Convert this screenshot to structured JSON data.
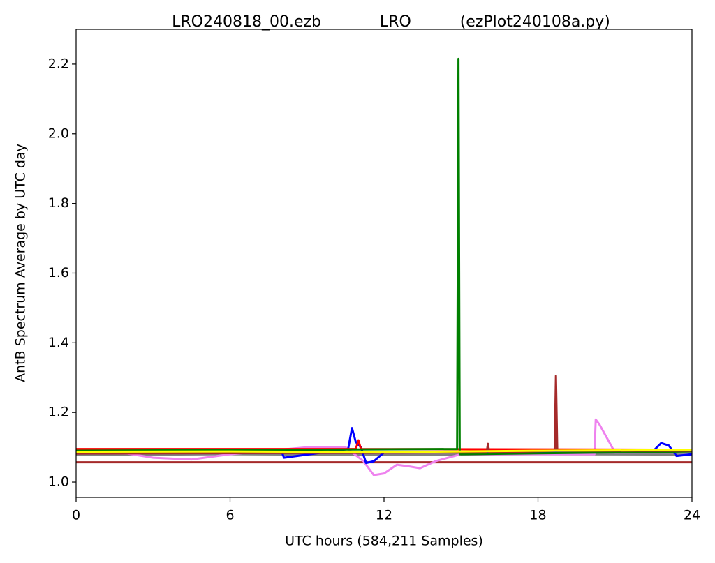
{
  "chart_data": {
    "type": "line",
    "title": "LRO240818_00.ezb            LRO          (ezPlot240108a.py)",
    "x_label": "UTC hours  (584,211 Samples)",
    "y_label": "AntB Spectrum Average by UTC day",
    "xlim": [
      0,
      24
    ],
    "xticks": [
      0,
      6,
      12,
      18,
      24
    ],
    "ylim": [
      0.956,
      2.3
    ],
    "yticks": [
      {
        "value": 1.0,
        "label": "1.0"
      },
      1.2,
      1.4,
      1.6,
      1.8,
      {
        "value": 2.0,
        "label": "2.0"
      },
      2.2
    ],
    "grid": false,
    "series": [
      {
        "color": "#a52a2a",
        "x": [
          0,
          24
        ],
        "values": [
          1.057,
          1.057
        ]
      },
      {
        "color": "#808080",
        "x": [
          0,
          6,
          12,
          18,
          24
        ],
        "values": [
          1.078,
          1.08,
          1.078,
          1.08,
          1.079
        ]
      },
      {
        "color": "#ee82ee",
        "x": [
          0,
          2,
          3,
          4.5,
          6,
          9,
          10.5,
          11.2,
          11.6,
          12,
          12.5,
          13,
          13.4,
          14,
          15,
          16,
          18,
          20.2,
          20.25,
          20.4,
          21,
          24
        ],
        "values": [
          1.085,
          1.082,
          1.07,
          1.065,
          1.08,
          1.1,
          1.1,
          1.06,
          1.02,
          1.025,
          1.05,
          1.045,
          1.04,
          1.06,
          1.08,
          1.08,
          1.08,
          1.08,
          1.18,
          1.165,
          1.085,
          1.085
        ]
      },
      {
        "color": "#0000ff",
        "x": [
          0,
          8,
          8.1,
          10.6,
          10.75,
          10.9,
          11.1,
          11.3,
          11.6,
          12,
          22.5,
          22.8,
          23.1,
          23.4,
          24
        ],
        "values": [
          1.093,
          1.09,
          1.07,
          1.095,
          1.155,
          1.115,
          1.1,
          1.055,
          1.06,
          1.085,
          1.09,
          1.112,
          1.105,
          1.075,
          1.08
        ]
      },
      {
        "color": "#ff0000",
        "x": [
          0,
          10.9,
          11,
          11.1,
          24
        ],
        "values": [
          1.095,
          1.095,
          1.12,
          1.095,
          1.093
        ]
      },
      {
        "color": "#008000",
        "x": [
          0,
          14.85,
          14.9,
          14.95,
          24
        ],
        "values": [
          1.09,
          1.095,
          2.215,
          1.08,
          1.088
        ]
      },
      {
        "color": "#a52a2a",
        "x": [
          0,
          16,
          16.05,
          16.1,
          18.65,
          18.7,
          18.75,
          24
        ],
        "values": [
          1.082,
          1.085,
          1.11,
          1.085,
          1.09,
          1.305,
          1.09,
          1.09
        ]
      },
      {
        "color": "#ffff00",
        "x": [
          0,
          6,
          12,
          18,
          24
        ],
        "values": [
          1.087,
          1.088,
          1.086,
          1.09,
          1.092
        ]
      }
    ]
  }
}
